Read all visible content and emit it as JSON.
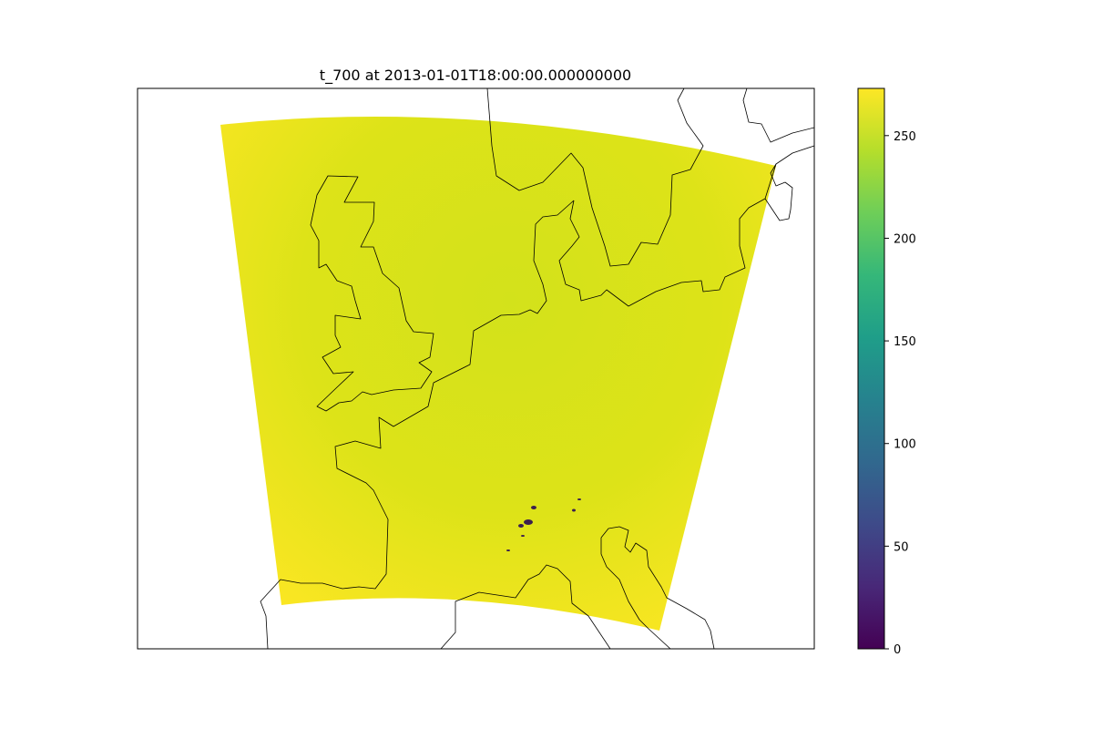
{
  "figure": {
    "title": "t_700 at 2013-01-01T18:00:00.000000000",
    "background_color": "#ffffff",
    "frame_color": "#000000",
    "coastline_color": "#000000"
  },
  "map": {
    "projection": "conic (curved top and bottom edges of data domain)",
    "features": [
      "coastlines"
    ],
    "region": "Western Europe: British Isles, France, Benelux, North Sea, Bay of Biscay, Alps/Corsica area",
    "field": {
      "variable": "t_700",
      "dominant_value_range": [
        250,
        273
      ],
      "low_value_specks": "small dark patches over the Alps",
      "fill_colors": [
        "#fde725",
        "#dde318",
        "#d2e21b"
      ]
    }
  },
  "colorbar": {
    "colormap": "viridis",
    "range": [
      0,
      273
    ],
    "ticks": [
      "0",
      "50",
      "100",
      "150",
      "200",
      "250"
    ],
    "tick_values": [
      0,
      50,
      100,
      150,
      200,
      250
    ],
    "stops": [
      "#440154",
      "#482878",
      "#3e4a89",
      "#31688e",
      "#26828e",
      "#1f9e89",
      "#35b779",
      "#6ece58",
      "#b5de2b",
      "#fde725"
    ]
  }
}
